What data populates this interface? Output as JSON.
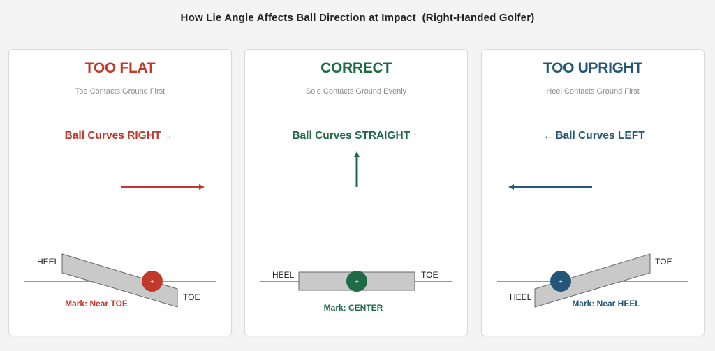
{
  "title": "How Lie Angle Affects Ball Direction at Impact  (Right-Handed Golfer)",
  "colors": {
    "flat": "#c0392b",
    "correct": "#1e6b45",
    "upright": "#245777",
    "club": "#c9c9c9",
    "ground": "#777777"
  },
  "panels": [
    {
      "heading": "TOO FLAT",
      "subtitle": "Toe Contacts Ground First",
      "curve_text": "Ball Curves RIGHT",
      "curve_arrow": "→",
      "heel": "HEEL",
      "toe": "TOE",
      "mark": "Mark: Near TOE"
    },
    {
      "heading": "CORRECT",
      "subtitle": "Sole Contacts Ground Evenly",
      "curve_text": "Ball Curves STRAIGHT",
      "curve_arrow": "↑",
      "heel": "HEEL",
      "toe": "TOE",
      "mark": "Mark: CENTER"
    },
    {
      "heading": "TOO UPRIGHT",
      "subtitle": "Heel Contacts Ground First",
      "curve_text": "Ball Curves LEFT",
      "curve_arrow": "←",
      "heel": "HEEL",
      "toe": "TOE",
      "mark": "Mark: Near HEEL"
    }
  ]
}
